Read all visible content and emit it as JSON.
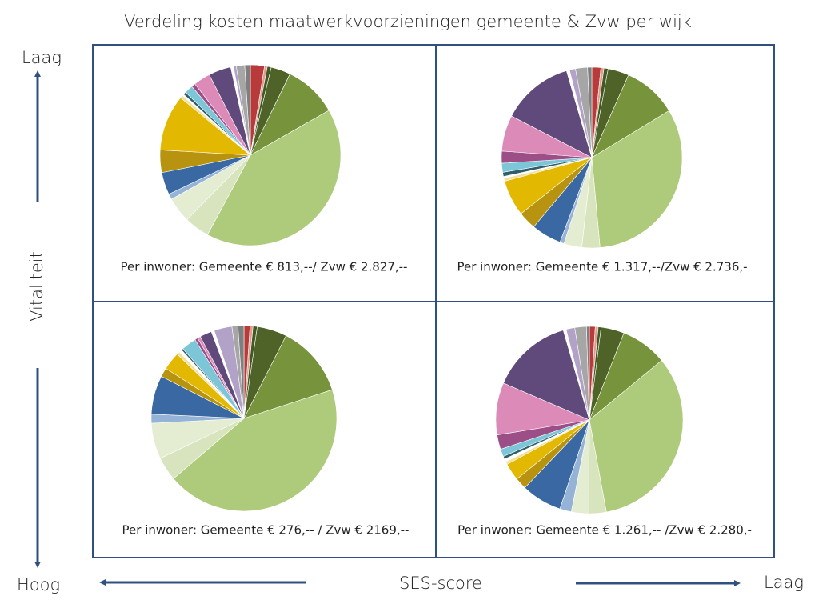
{
  "title": "Verdeling kosten maatwerkvoorzieningen gemeente & Zvw per wijk",
  "y_axis": {
    "label": "Vitaliteit",
    "top": "Laag",
    "bottom": "Hoog"
  },
  "x_axis": {
    "label": "SES-score",
    "left": "Hoog",
    "right": "Laag"
  },
  "chart_data": [
    {
      "type": "pie",
      "caption": "Per inwoner: Gemeente € 813,--/ Zvw € 2.827,--",
      "values": [
        2.5,
        0.5,
        0.7,
        3.5,
        9.5,
        41,
        4.5,
        4.5,
        1,
        4,
        4,
        10,
        0.5,
        0.3,
        0.5,
        1.5,
        0.7,
        3,
        4,
        0.5,
        0.5,
        1.5,
        1
      ],
      "colors": [
        "#b83b3b",
        "#e49a8c",
        "#3f5a23",
        "#4f6228",
        "#77933c",
        "#aeca7b",
        "#d7e4bd",
        "#e4edd2",
        "#95b3d7",
        "#3a68a2",
        "#b8930f",
        "#e3b800",
        "#f4e09a",
        "#ffffff",
        "#2f5f6a",
        "#7cc6d8",
        "#9b4f86",
        "#dc8ab8",
        "#5f4a7b",
        "#ffffff",
        "#b3a2c7",
        "#a6a6a6",
        "#7f7f7f"
      ]
    },
    {
      "type": "pie",
      "caption": "Per inwoner: Gemeente € 1.317,--/Zvw € 2.736,-",
      "values": [
        1.5,
        0.5,
        0.7,
        3.5,
        9,
        30,
        3,
        3,
        0.7,
        5,
        3,
        6,
        0.5,
        0.3,
        0.7,
        1.5,
        2,
        6,
        12,
        0.5,
        1,
        2,
        0.7
      ],
      "colors": [
        "#b83b3b",
        "#e49a8c",
        "#3f5a23",
        "#4f6228",
        "#77933c",
        "#aeca7b",
        "#d7e4bd",
        "#e4edd2",
        "#95b3d7",
        "#3a68a2",
        "#b8930f",
        "#e3b800",
        "#f4e09a",
        "#ffffff",
        "#2f5f6a",
        "#7cc6d8",
        "#9b4f86",
        "#dc8ab8",
        "#5f4a7b",
        "#ffffff",
        "#b3a2c7",
        "#a6a6a6",
        "#7f7f7f"
      ]
    },
    {
      "type": "pie",
      "caption": "Per inwoner: Gemeente € 276,-- / Zvw € 2169,--",
      "values": [
        1,
        0.5,
        0.7,
        5,
        12,
        42,
        4,
        6,
        1.5,
        6.5,
        1.5,
        3,
        0.5,
        0.5,
        0.3,
        2.5,
        0.5,
        0.5,
        2,
        0.5,
        3,
        1,
        1
      ],
      "colors": [
        "#b83b3b",
        "#e49a8c",
        "#3f5a23",
        "#4f6228",
        "#77933c",
        "#aeca7b",
        "#d7e4bd",
        "#e4edd2",
        "#95b3d7",
        "#3a68a2",
        "#b8930f",
        "#e3b800",
        "#f4e09a",
        "#ffffff",
        "#2f5f6a",
        "#7cc6d8",
        "#9b4f86",
        "#dc8ab8",
        "#5f4a7b",
        "#ffffff",
        "#b3a2c7",
        "#a6a6a6",
        "#7f7f7f"
      ]
    },
    {
      "type": "pie",
      "caption": "Per inwoner: Gemeente € 1.261,-- /Zvw € 2.280,-",
      "values": [
        1,
        0.5,
        0.5,
        4,
        8,
        33,
        3,
        3,
        2,
        7,
        2,
        3,
        0.5,
        0.5,
        0.5,
        1.3,
        2.5,
        9,
        14,
        0.5,
        1.5,
        2,
        0.5
      ],
      "colors": [
        "#b83b3b",
        "#e49a8c",
        "#3f5a23",
        "#4f6228",
        "#77933c",
        "#aeca7b",
        "#d7e4bd",
        "#e4edd2",
        "#95b3d7",
        "#3a68a2",
        "#b8930f",
        "#e3b800",
        "#f4e09a",
        "#ffffff",
        "#2f5f6a",
        "#7cc6d8",
        "#9b4f86",
        "#dc8ab8",
        "#5f4a7b",
        "#ffffff",
        "#b3a2c7",
        "#a6a6a6",
        "#7f7f7f"
      ]
    }
  ]
}
